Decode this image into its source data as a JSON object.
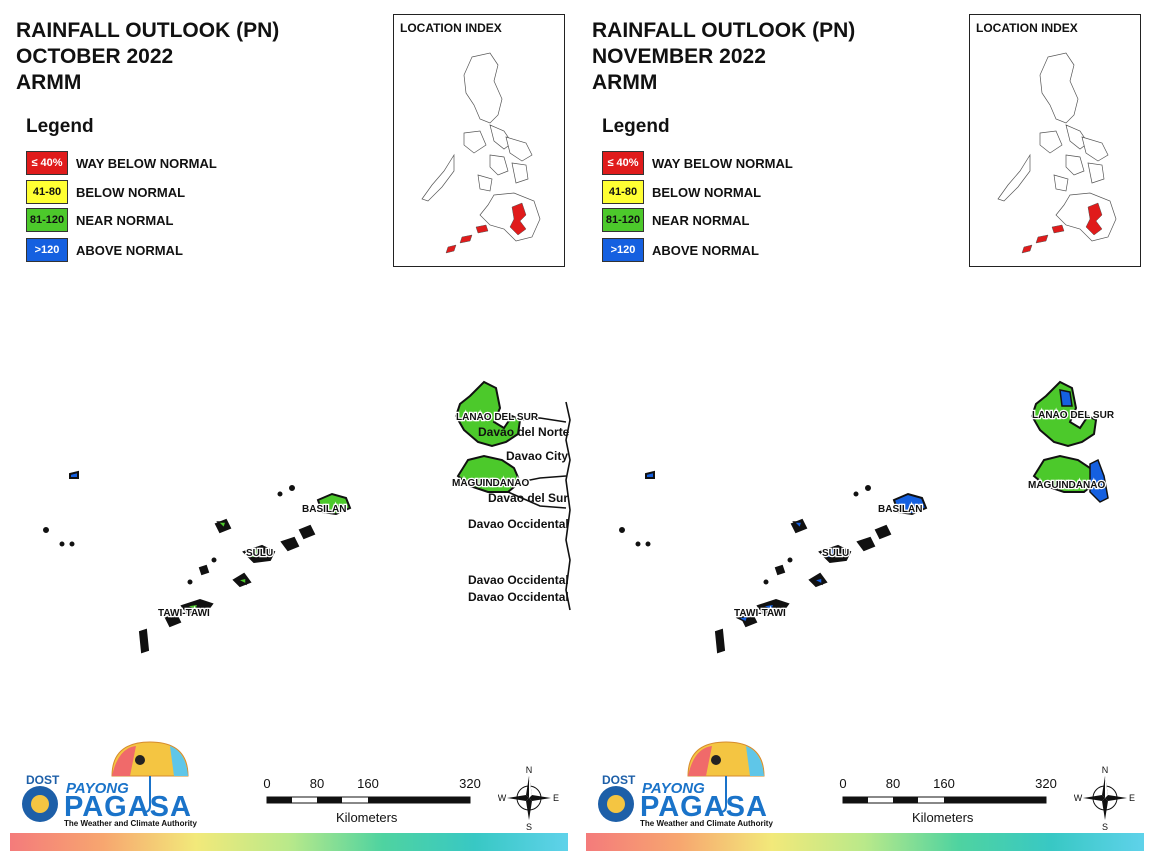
{
  "panels": [
    {
      "title_lines": [
        "RAINFALL OUTLOOK (PN)",
        "OCTOBER 2022",
        "ARMM"
      ],
      "month": "october"
    },
    {
      "title_lines": [
        "RAINFALL OUTLOOK (PN)",
        "NOVEMBER 2022",
        "ARMM"
      ],
      "month": "november"
    }
  ],
  "legend": {
    "title": "Legend",
    "items": [
      {
        "range": "≤ 40%",
        "label": "WAY BELOW NORMAL",
        "color": "#e01b1b",
        "text_color": "#ffffff"
      },
      {
        "range": "41-80",
        "label": "BELOW NORMAL",
        "color": "#ffff33",
        "text_color": "#111111"
      },
      {
        "range": "81-120",
        "label": "NEAR NORMAL",
        "color": "#4cc92b",
        "text_color": "#111111"
      },
      {
        "range": ">120",
        "label": "ABOVE NORMAL",
        "color": "#1560e0",
        "text_color": "#ffffff"
      }
    ]
  },
  "location_index": {
    "title": "LOCATION INDEX",
    "highlight_color": "#e01b1b"
  },
  "map_labels_left": {
    "lanao": "LANAO DEL SUR",
    "davao_norte": "Davao del Norte",
    "davao_city": "Davao City",
    "maguindanao": "MAGUINDANAO",
    "davao_sur": "Davao del Sur",
    "davao_occ_1": "Davao Occidental",
    "davao_occ_2": "Davao Occidental",
    "davao_occ_3": "Davao Occidental",
    "basilan": "BASILAN",
    "sulu": "SULU",
    "tawi": "TAWI-TAWI"
  },
  "map_labels_right": {
    "lanao": "LANAO DEL SUR",
    "maguindanao": "MAGUINDANAO",
    "basilan": "BASILAN",
    "sulu": "SULU",
    "tawi": "TAWI-TAWI"
  },
  "branding": {
    "dost": "DOST",
    "payong": "PAYONG",
    "pagasa": "PAGASA",
    "tagline": "The Weather and Climate Authority"
  },
  "scale": {
    "ticks": [
      "0",
      "80",
      "160",
      "320"
    ],
    "unit": "Kilometers"
  },
  "compass": {
    "n": "N",
    "s": "S",
    "e": "E",
    "w": "W"
  },
  "colors": {
    "near_normal": "#4cc92b",
    "above_normal": "#1560e0",
    "way_below": "#e01b1b"
  }
}
